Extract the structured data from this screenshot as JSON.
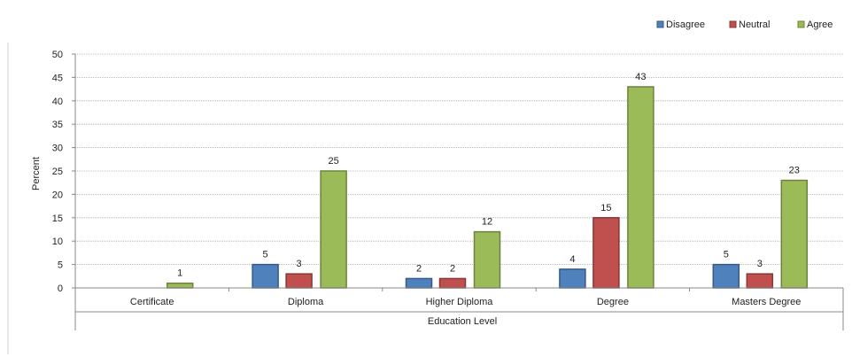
{
  "chart_data": {
    "type": "bar",
    "categories": [
      "Certificate",
      "Diploma",
      "Higher Diploma",
      "Degree",
      "Masters Degree"
    ],
    "series": [
      {
        "name": "Disagree",
        "color": "#4f81bd",
        "values": [
          null,
          5,
          2,
          4,
          5
        ]
      },
      {
        "name": "Neutral",
        "color": "#c0504d",
        "values": [
          null,
          3,
          2,
          15,
          3
        ]
      },
      {
        "name": "Agree",
        "color": "#9bbb59",
        "values": [
          1,
          25,
          12,
          43,
          23
        ]
      }
    ],
    "xlabel": "Education Level",
    "ylabel": "Percent",
    "ylim": [
      0,
      50
    ],
    "yticks": [
      0,
      5,
      10,
      15,
      20,
      25,
      30,
      35,
      40,
      45,
      50
    ],
    "grid": true,
    "legend_position": "top-right",
    "data_labels": true
  }
}
